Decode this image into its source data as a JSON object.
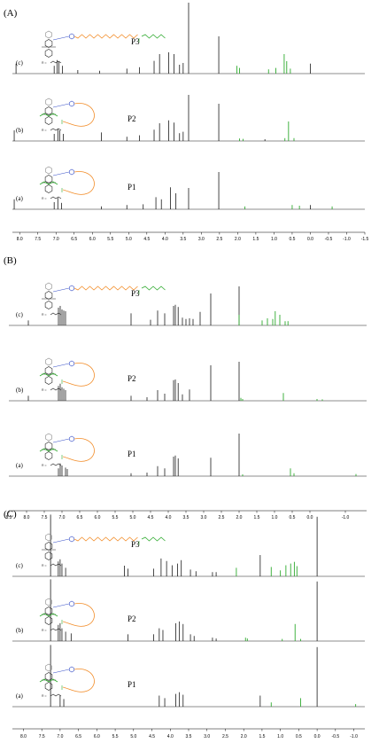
{
  "chart_data": [
    {
      "type": "line",
      "panel": "(A)",
      "x_range": [
        8.2,
        -1.5
      ],
      "x_ticks": [
        "8.0",
        "7.5",
        "7.0",
        "6.5",
        "6.0",
        "5.5",
        "5.0",
        "4.5",
        "4.0",
        "3.5",
        "3.0",
        "2.5",
        "2.0",
        "1.5",
        "1.0",
        "0.5",
        "0.0",
        "-0.5",
        "-1.0",
        "-1.5"
      ],
      "x_tick_values": [
        8.0,
        7.5,
        7.0,
        6.5,
        6.0,
        5.5,
        5.0,
        4.5,
        4.0,
        3.5,
        3.0,
        2.5,
        2.0,
        1.5,
        1.0,
        0.5,
        0.0,
        -0.5,
        -1.0,
        -1.5
      ],
      "traces": [
        {
          "label": "(c)",
          "name": "P3",
          "black": [
            [
              8.1,
              0.28
            ],
            [
              7.05,
              0.22
            ],
            [
              6.97,
              0.38
            ],
            [
              6.92,
              0.34
            ],
            [
              6.82,
              0.22
            ],
            [
              6.4,
              0.1
            ],
            [
              5.8,
              0.08
            ],
            [
              5.05,
              0.14
            ],
            [
              4.7,
              0.18
            ],
            [
              4.3,
              0.36
            ],
            [
              4.15,
              0.55
            ],
            [
              3.9,
              0.6
            ],
            [
              3.75,
              0.55
            ],
            [
              3.6,
              0.25
            ],
            [
              3.5,
              0.3
            ],
            [
              3.35,
              2.0
            ],
            [
              2.52,
              1.05
            ],
            [
              0.0,
              0.28
            ]
          ],
          "green": [
            [
              2.02,
              0.22
            ],
            [
              1.95,
              0.16
            ],
            [
              1.15,
              0.12
            ],
            [
              0.95,
              0.16
            ],
            [
              0.72,
              0.55
            ],
            [
              0.65,
              0.35
            ],
            [
              0.55,
              0.14
            ]
          ]
        },
        {
          "label": "(b)",
          "name": "P2",
          "black": [
            [
              8.15,
              0.3
            ],
            [
              7.05,
              0.2
            ],
            [
              6.95,
              0.34
            ],
            [
              6.9,
              0.3
            ],
            [
              6.8,
              0.2
            ],
            [
              5.75,
              0.24
            ],
            [
              5.05,
              0.12
            ],
            [
              4.7,
              0.16
            ],
            [
              4.3,
              0.32
            ],
            [
              4.15,
              0.5
            ],
            [
              3.9,
              0.58
            ],
            [
              3.75,
              0.52
            ],
            [
              3.6,
              0.22
            ],
            [
              3.5,
              0.26
            ],
            [
              3.35,
              1.3
            ],
            [
              2.52,
              1.05
            ],
            [
              1.25,
              0.05
            ]
          ],
          "green": [
            [
              1.95,
              0.07
            ],
            [
              1.85,
              0.06
            ],
            [
              0.7,
              0.08
            ],
            [
              0.6,
              0.55
            ],
            [
              0.45,
              0.08
            ]
          ]
        },
        {
          "label": "(a)",
          "name": "P1",
          "black": [
            [
              8.15,
              0.28
            ],
            [
              7.05,
              0.2
            ],
            [
              6.95,
              0.32
            ],
            [
              6.85,
              0.18
            ],
            [
              5.75,
              0.08
            ],
            [
              5.05,
              0.12
            ],
            [
              4.6,
              0.14
            ],
            [
              4.25,
              0.34
            ],
            [
              4.1,
              0.28
            ],
            [
              3.85,
              0.62
            ],
            [
              3.7,
              0.45
            ],
            [
              3.35,
              0.6
            ],
            [
              2.52,
              1.05
            ],
            [
              0.0,
              0.12
            ]
          ],
          "green": [
            [
              1.8,
              0.08
            ],
            [
              0.5,
              0.12
            ],
            [
              0.3,
              0.1
            ],
            [
              -0.6,
              0.08
            ]
          ]
        }
      ]
    },
    {
      "type": "line",
      "panel": "(B)",
      "x_range": [
        8.5,
        -1.6
      ],
      "x_ticks": [
        "8.5",
        "8.0",
        "7.5",
        "7.0",
        "6.5",
        "6.0",
        "5.5",
        "5.0",
        "4.5",
        "4.0",
        "3.5",
        "3.0",
        "2.5",
        "2.0",
        "1.5",
        "1.0",
        "0.5",
        "0.0",
        "-1.0"
      ],
      "x_tick_values": [
        8.5,
        8.0,
        7.5,
        7.0,
        6.5,
        6.0,
        5.5,
        5.0,
        4.5,
        4.0,
        3.5,
        3.0,
        2.5,
        2.0,
        1.5,
        1.0,
        0.5,
        0.0,
        -1.0
      ],
      "traces": [
        {
          "label": "(c)",
          "name": "P3",
          "black": [
            [
              7.95,
              0.14
            ],
            [
              7.1,
              0.5
            ],
            [
              7.05,
              0.55
            ],
            [
              7.0,
              0.45
            ],
            [
              6.95,
              0.42
            ],
            [
              6.9,
              0.4
            ],
            [
              5.05,
              0.34
            ],
            [
              4.5,
              0.16
            ],
            [
              4.3,
              0.42
            ],
            [
              4.1,
              0.34
            ],
            [
              3.85,
              0.55
            ],
            [
              3.8,
              0.58
            ],
            [
              3.72,
              0.52
            ],
            [
              3.6,
              0.22
            ],
            [
              3.5,
              0.18
            ],
            [
              3.4,
              0.2
            ],
            [
              3.3,
              0.18
            ],
            [
              3.1,
              0.38
            ],
            [
              2.8,
              0.9
            ],
            [
              2.0,
              1.1
            ]
          ],
          "green": [
            [
              2.0,
              0.3
            ],
            [
              1.35,
              0.14
            ],
            [
              1.2,
              0.2
            ],
            [
              1.05,
              0.18
            ],
            [
              0.98,
              0.4
            ],
            [
              0.85,
              0.3
            ],
            [
              0.7,
              0.12
            ],
            [
              0.62,
              0.12
            ]
          ]
        },
        {
          "label": "(b)",
          "name": "P2",
          "black": [
            [
              7.95,
              0.14
            ],
            [
              7.1,
              0.42
            ],
            [
              7.05,
              0.48
            ],
            [
              7.0,
              0.38
            ],
            [
              6.95,
              0.34
            ],
            [
              6.9,
              0.3
            ],
            [
              5.05,
              0.14
            ],
            [
              4.6,
              0.1
            ],
            [
              4.3,
              0.3
            ],
            [
              4.1,
              0.2
            ],
            [
              3.85,
              0.58
            ],
            [
              3.8,
              0.6
            ],
            [
              3.72,
              0.5
            ],
            [
              3.6,
              0.18
            ],
            [
              3.4,
              0.32
            ],
            [
              2.8,
              1.0
            ],
            [
              2.0,
              1.1
            ]
          ],
          "green": [
            [
              1.95,
              0.08
            ],
            [
              1.9,
              0.05
            ],
            [
              0.75,
              0.22
            ],
            [
              -0.2,
              0.05
            ],
            [
              -0.35,
              0.04
            ]
          ]
        },
        {
          "label": "(a)",
          "name": "P1",
          "black": [
            [
              7.1,
              0.22
            ],
            [
              7.05,
              0.36
            ],
            [
              7.0,
              0.3
            ],
            [
              6.9,
              0.24
            ],
            [
              6.85,
              0.2
            ],
            [
              5.05,
              0.08
            ],
            [
              4.6,
              0.1
            ],
            [
              4.3,
              0.28
            ],
            [
              4.1,
              0.22
            ],
            [
              3.85,
              0.55
            ],
            [
              3.8,
              0.58
            ],
            [
              3.72,
              0.5
            ],
            [
              2.8,
              0.52
            ],
            [
              2.0,
              1.2
            ]
          ],
          "green": [
            [
              1.9,
              0.05
            ],
            [
              0.55,
              0.22
            ],
            [
              0.45,
              0.08
            ],
            [
              -1.3,
              0.06
            ]
          ]
        }
      ]
    },
    {
      "type": "line",
      "panel": "(C)",
      "x_range": [
        8.3,
        -1.3
      ],
      "x_ticks": [
        "8.0",
        "7.5",
        "7.0",
        "6.5",
        "6.0",
        "5.5",
        "5.0",
        "4.5",
        "4.0",
        "3.5",
        "3.0",
        "2.5",
        "2.0",
        "1.5",
        "1.0",
        "0.5",
        "0.0",
        "-0.5",
        "-1.0"
      ],
      "x_tick_values": [
        8.0,
        7.5,
        7.0,
        6.5,
        6.0,
        5.5,
        5.0,
        4.5,
        4.0,
        3.5,
        3.0,
        2.5,
        2.0,
        1.5,
        1.0,
        0.5,
        0.0,
        -0.5,
        -1.0
      ],
      "traces": [
        {
          "label": "(c)",
          "name": "P3",
          "black": [
            [
              7.26,
              1.45
            ],
            [
              7.05,
              0.35
            ],
            [
              7.0,
              0.4
            ],
            [
              6.95,
              0.3
            ],
            [
              6.85,
              0.2
            ],
            [
              5.25,
              0.25
            ],
            [
              5.15,
              0.18
            ],
            [
              4.45,
              0.18
            ],
            [
              4.25,
              0.42
            ],
            [
              4.1,
              0.36
            ],
            [
              3.95,
              0.26
            ],
            [
              3.8,
              0.3
            ],
            [
              3.7,
              0.38
            ],
            [
              3.45,
              0.16
            ],
            [
              3.3,
              0.12
            ],
            [
              2.85,
              0.1
            ],
            [
              2.75,
              0.1
            ],
            [
              1.55,
              0.5
            ],
            [
              0.0,
              1.4
            ]
          ],
          "green": [
            [
              2.2,
              0.2
            ],
            [
              1.25,
              0.22
            ],
            [
              1.0,
              0.14
            ],
            [
              0.85,
              0.26
            ],
            [
              0.72,
              0.3
            ],
            [
              0.62,
              0.34
            ],
            [
              0.55,
              0.24
            ]
          ]
        },
        {
          "label": "(b)",
          "name": "P2",
          "black": [
            [
              7.26,
              1.45
            ],
            [
              7.05,
              0.38
            ],
            [
              7.0,
              0.42
            ],
            [
              6.95,
              0.3
            ],
            [
              6.85,
              0.22
            ],
            [
              6.7,
              0.18
            ],
            [
              5.15,
              0.16
            ],
            [
              4.45,
              0.16
            ],
            [
              4.3,
              0.3
            ],
            [
              4.2,
              0.26
            ],
            [
              3.85,
              0.42
            ],
            [
              3.75,
              0.46
            ],
            [
              3.65,
              0.4
            ],
            [
              3.45,
              0.16
            ],
            [
              3.35,
              0.12
            ],
            [
              2.85,
              0.08
            ],
            [
              2.75,
              0.06
            ],
            [
              0.0,
              1.4
            ]
          ],
          "green": [
            [
              1.95,
              0.08
            ],
            [
              1.9,
              0.06
            ],
            [
              0.95,
              0.05
            ],
            [
              0.6,
              0.4
            ],
            [
              0.45,
              0.05
            ]
          ]
        },
        {
          "label": "(a)",
          "name": "P1",
          "black": [
            [
              7.26,
              1.45
            ],
            [
              7.0,
              0.26
            ],
            [
              6.9,
              0.18
            ],
            [
              4.3,
              0.26
            ],
            [
              4.15,
              0.2
            ],
            [
              3.85,
              0.3
            ],
            [
              3.75,
              0.34
            ],
            [
              3.65,
              0.28
            ],
            [
              1.55,
              0.26
            ],
            [
              0.0,
              1.4
            ]
          ],
          "green": [
            [
              1.25,
              0.1
            ],
            [
              0.45,
              0.2
            ],
            [
              -1.05,
              0.06
            ]
          ]
        }
      ]
    }
  ],
  "structure": {
    "R_label": "R ="
  },
  "colors": {
    "spectrum": "#1a1a1a",
    "green": "#2eaa2e",
    "orange": "#f28c28",
    "blue": "#3a52c8",
    "struct_gray": "#888888"
  }
}
